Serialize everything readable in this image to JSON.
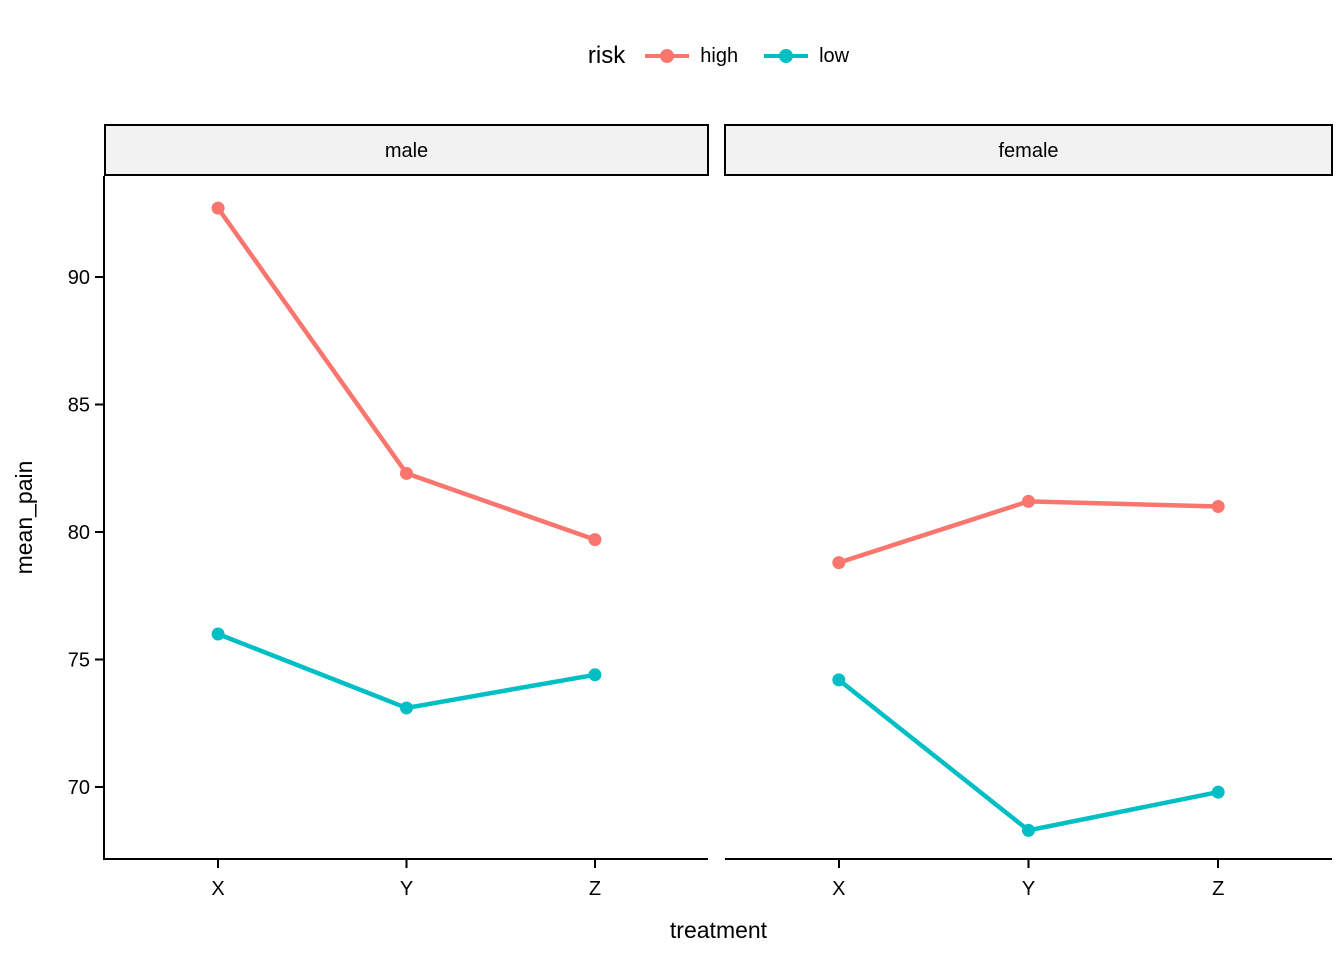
{
  "legend": {
    "title": "risk",
    "items": [
      {
        "label": "high",
        "color": "#F8766D"
      },
      {
        "label": "low",
        "color": "#00BFC4"
      }
    ]
  },
  "axes": {
    "x_title": "treatment",
    "y_title": "mean_pain",
    "x_tick_labels": [
      "X",
      "Y",
      "Z"
    ],
    "y_tick_values": [
      70,
      75,
      80,
      85,
      90
    ]
  },
  "chart_data": {
    "type": "line",
    "x": [
      "X",
      "Y",
      "Z"
    ],
    "facets": [
      {
        "name": "male",
        "series": [
          {
            "name": "high",
            "color": "#F8766D",
            "values": [
              92.7,
              82.3,
              79.7
            ]
          },
          {
            "name": "low",
            "color": "#00BFC4",
            "values": [
              76.0,
              73.1,
              74.4
            ]
          }
        ]
      },
      {
        "name": "female",
        "series": [
          {
            "name": "high",
            "color": "#F8766D",
            "values": [
              78.8,
              81.2,
              81.0
            ]
          },
          {
            "name": "low",
            "color": "#00BFC4",
            "values": [
              74.2,
              68.3,
              69.8
            ]
          }
        ]
      }
    ],
    "title": "",
    "xlabel": "treatment",
    "ylabel": "mean_pain",
    "ylim": [
      67.2,
      93.9
    ],
    "grid": "off",
    "legend_position": "top-center"
  },
  "style": {
    "strip_bg": "#F2F2F2",
    "strip_border": "#000000",
    "axis_color": "#000000",
    "text_color": "#000000"
  }
}
